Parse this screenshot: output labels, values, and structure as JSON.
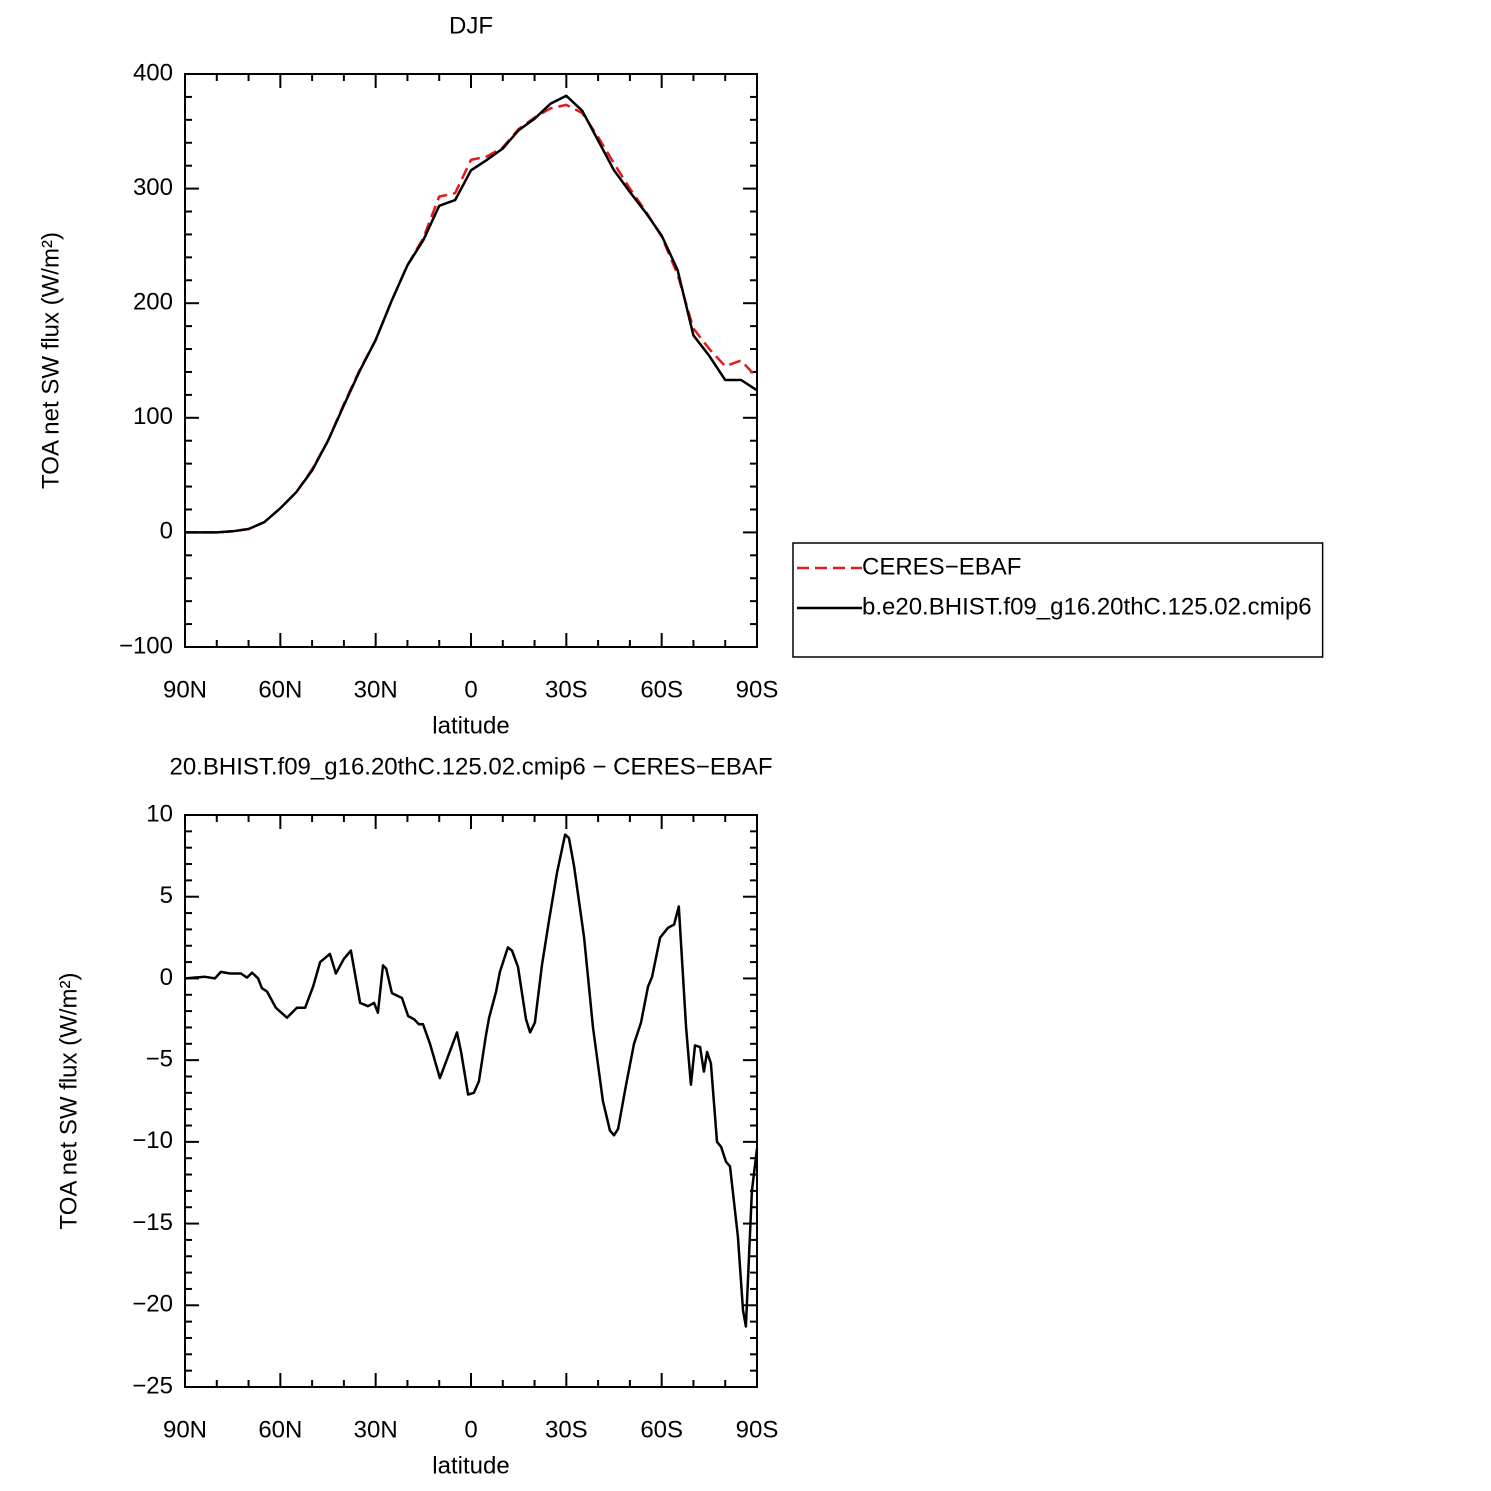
{
  "chart_data": [
    {
      "type": "line",
      "title": "DJF",
      "x_label": "latitude",
      "y_label": "TOA net SW flux (W/m²)",
      "x": [
        90,
        85,
        80,
        75,
        70,
        65,
        60,
        55,
        50,
        45,
        40,
        35,
        30,
        25,
        20,
        15,
        10,
        5,
        0,
        -5,
        -10,
        -15,
        -20,
        -25,
        -30,
        -35,
        -40,
        -45,
        -50,
        -55,
        -60,
        -65,
        -70,
        -75,
        -80,
        -85,
        -90
      ],
      "series": [
        {
          "name": "CERES−EBAF",
          "color": "#e41a1c",
          "linestyle": "dashed",
          "values": [
            0,
            0,
            0,
            1,
            3,
            9,
            21,
            35,
            55,
            80,
            112,
            142,
            168,
            202,
            233,
            257,
            293,
            296,
            325,
            328,
            336,
            352,
            362,
            370,
            373,
            366,
            345,
            322,
            300,
            280,
            258,
            225,
            178,
            160,
            145,
            150,
            135
          ]
        },
        {
          "name": "b.e20.BHIST.f09_g16.20thC.125.02.cmip6",
          "color": "#000000",
          "linestyle": "solid",
          "values": [
            0,
            0,
            0,
            1,
            3,
            9,
            21,
            35,
            54,
            80,
            111,
            141,
            168,
            202,
            233,
            255,
            285,
            290,
            316,
            325,
            335,
            351,
            361,
            374,
            381,
            368,
            342,
            316,
            297,
            279,
            259,
            229,
            172,
            154,
            133,
            133,
            124
          ]
        }
      ],
      "xlim": [
        90,
        -90
      ],
      "xticks": [
        {
          "value": 90,
          "label": "90N"
        },
        {
          "value": 60,
          "label": "60N"
        },
        {
          "value": 30,
          "label": "30N"
        },
        0,
        {
          "value": -30,
          "label": "30S"
        },
        {
          "value": -60,
          "label": "60S"
        },
        {
          "value": -90,
          "label": "90S"
        }
      ],
      "ylim": [
        -100,
        400
      ],
      "yticks": [
        {
          "value": -100,
          "label": "−100"
        },
        0,
        100,
        200,
        300,
        400
      ],
      "legend": "right"
    },
    {
      "type": "line",
      "title": "20.BHIST.f09_g16.20thC.125.02.cmip6 − CERES−EBAF",
      "x_label": "latitude",
      "y_label": "TOA net SW flux (W/m²)",
      "x": [
        90,
        83.7,
        80.6,
        78.7,
        75.8,
        72.4,
        70.5,
        68.9,
        67,
        65.8,
        64.2,
        61.4,
        57.9,
        54.8,
        52.2,
        49.7,
        47.5,
        44.4,
        42.5,
        40,
        37.8,
        34.9,
        32.4,
        30.5,
        29.3,
        27.7,
        26.7,
        24.9,
        21.7,
        19.8,
        17.9,
        16.4,
        15.1,
        12.9,
        9.8,
        4.4,
        3.1,
        0.9,
        -0.9,
        -2.5,
        -4.7,
        -5.7,
        -7.9,
        -9.1,
        -11.6,
        -12.9,
        -14.8,
        -17.3,
        -18.6,
        -20.1,
        -22.3,
        -24.5,
        -27.1,
        -29.6,
        -30.8,
        -32.4,
        -35.6,
        -38.4,
        -41.5,
        -43.7,
        -45,
        -46.3,
        -48.8,
        -51.3,
        -53.5,
        -55.7,
        -57,
        -59.5,
        -62,
        -63.9,
        -65.4,
        -67.7,
        -69.2,
        -70.5,
        -72.1,
        -73.3,
        -74.3,
        -75.5,
        -77.4,
        -78.7,
        -80.2,
        -81.5,
        -84,
        -85.6,
        -86.5,
        -88.4,
        -90
      ],
      "values": [
        0,
        0.1,
        0,
        0.4,
        0.3,
        0.3,
        0.05,
        0.35,
        0,
        -0.6,
        -0.8,
        -1.8,
        -2.4,
        -1.8,
        -1.8,
        -0.5,
        1,
        1.5,
        0.3,
        1.2,
        1.7,
        -1.5,
        -1.7,
        -1.5,
        -2.1,
        0.8,
        0.6,
        -0.9,
        -1.2,
        -2.3,
        -2.5,
        -2.8,
        -2.8,
        -4,
        -6.1,
        -3.3,
        -4.5,
        -7.1,
        -7,
        -6.3,
        -3.5,
        -2.4,
        -0.8,
        0.4,
        1.9,
        1.7,
        0.7,
        -2.5,
        -3.3,
        -2.7,
        0.8,
        3.5,
        6.5,
        8.8,
        8.6,
        6.9,
        2.5,
        -3,
        -7.5,
        -9.3,
        -9.6,
        -9.2,
        -6.5,
        -4,
        -2.7,
        -0.5,
        0.1,
        2.5,
        3.1,
        3.3,
        4.4,
        -3,
        -6.5,
        -4.1,
        -4.2,
        -5.7,
        -4.5,
        -5.2,
        -10,
        -10.3,
        -11.2,
        -11.5,
        -15.8,
        -20.3,
        -21.3,
        -13,
        -10.4
      ],
      "color": "#000000",
      "xlim": [
        90,
        -90
      ],
      "xticks": [
        {
          "value": 90,
          "label": "90N"
        },
        {
          "value": 60,
          "label": "60N"
        },
        {
          "value": 30,
          "label": "30N"
        },
        0,
        {
          "value": -30,
          "label": "30S"
        },
        {
          "value": -60,
          "label": "60S"
        },
        {
          "value": -90,
          "label": "90S"
        }
      ],
      "ylim": [
        -25,
        10
      ],
      "yticks": [
        {
          "value": -25,
          "label": "−25"
        },
        {
          "value": -20,
          "label": "−20"
        },
        {
          "value": -15,
          "label": "−15"
        },
        {
          "value": -10,
          "label": "−10"
        },
        {
          "value": -5,
          "label": "−5"
        },
        0,
        5,
        10
      ]
    }
  ]
}
